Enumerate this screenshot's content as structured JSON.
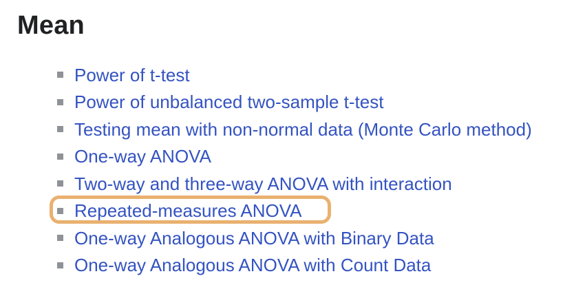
{
  "section": {
    "heading": "Mean",
    "links": [
      {
        "label": "Power of t-test",
        "highlighted": false
      },
      {
        "label": "Power of unbalanced two-sample t-test",
        "highlighted": false
      },
      {
        "label": "Testing mean with non-normal data (Monte Carlo method)",
        "highlighted": false
      },
      {
        "label": "One-way ANOVA",
        "highlighted": false
      },
      {
        "label": "Two-way and three-way ANOVA with interaction",
        "highlighted": false
      },
      {
        "label": "Repeated-measures ANOVA",
        "highlighted": true
      },
      {
        "label": "One-way Analogous ANOVA with Binary Data",
        "highlighted": false
      },
      {
        "label": "One-way Analogous ANOVA with Count Data",
        "highlighted": false
      }
    ],
    "colors": {
      "heading": "#202122",
      "link": "#3453c1",
      "bullet": "#8f9296",
      "highlight": "#e9b16f"
    }
  }
}
